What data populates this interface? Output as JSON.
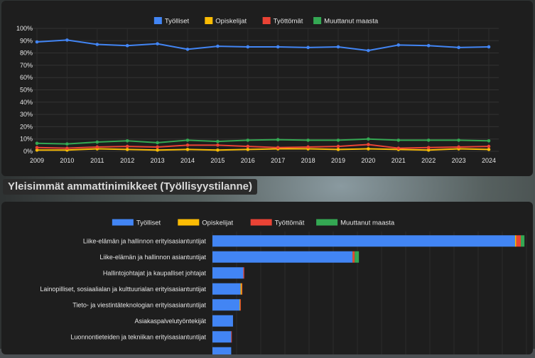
{
  "section_title": "Yleisimmät ammattinimikkeet (Työllisyystilanne)",
  "colors": {
    "tyolliset": "#4285f4",
    "opiskelijat": "#fbbc04",
    "tyottomat": "#ea4335",
    "muuttanut": "#34a853"
  },
  "chart_data": [
    {
      "type": "line",
      "legend": [
        "Työlliset",
        "Opiskelijat",
        "Työttömät",
        "Muuttanut maasta"
      ],
      "legend_position": "top",
      "x": [
        "2009",
        "2010",
        "2011",
        "2012",
        "2013",
        "2014",
        "2015",
        "2016",
        "2017",
        "2018",
        "2019",
        "2020",
        "2021",
        "2022",
        "2023",
        "2024"
      ],
      "yticks": [
        "0%",
        "10%",
        "20%",
        "30%",
        "40%",
        "50%",
        "60%",
        "70%",
        "80%",
        "90%",
        "100%"
      ],
      "ylim": [
        0,
        100
      ],
      "grid": true,
      "series": [
        {
          "name": "Työlliset",
          "values": [
            89,
            90.5,
            87,
            86,
            87.5,
            83,
            85.5,
            85,
            85,
            84.5,
            85,
            82,
            86.5,
            86,
            84.5,
            85
          ]
        },
        {
          "name": "Opiskelijat",
          "values": [
            1,
            1,
            2,
            1.5,
            1,
            1.5,
            1,
            1.5,
            2,
            2,
            1.5,
            2,
            1.5,
            1,
            2,
            1.5
          ]
        },
        {
          "name": "Työttömät",
          "values": [
            3,
            2.5,
            3.5,
            4,
            3.5,
            5,
            5,
            4,
            3,
            3.5,
            4,
            5.5,
            2.5,
            3,
            3.5,
            4
          ]
        },
        {
          "name": "Muuttanut maasta",
          "values": [
            6.5,
            6,
            7.5,
            8.5,
            7,
            9,
            8,
            9,
            9.5,
            9,
            9,
            10,
            9,
            9,
            9,
            8.5
          ]
        }
      ]
    },
    {
      "type": "bar",
      "orientation": "horizontal",
      "stacked": true,
      "legend": [
        "Työlliset",
        "Opiskelijat",
        "Työttömät",
        "Muuttanut maasta"
      ],
      "legend_position": "top",
      "categories": [
        "Liike-elämän ja hallinnon erityisasiantuntijat",
        "Liike-elämän ja hallinnon asiantuntijat",
        "Hallintojohtajat ja kaupalliset johtajat",
        "Lainopilliset, sosiaalialan ja kulttuurialan erityisasiantuntijat",
        "Tieto- ja viestintäteknologian erityisasiantuntijat",
        "Asiakaspalvelutyöntekijät",
        "Luonnontieteiden ja tekniikan erityisasiantuntijat",
        ""
      ],
      "series": [
        {
          "name": "Työlliset",
          "values": [
            1000,
            463,
            102,
            93,
            90,
            68,
            62,
            62
          ]
        },
        {
          "name": "Opiskelijat",
          "values": [
            4,
            1,
            0,
            4,
            2,
            0,
            0,
            0
          ]
        },
        {
          "name": "Työttömät",
          "values": [
            15,
            6,
            3,
            2,
            2,
            0,
            2,
            0
          ]
        },
        {
          "name": "Muuttanut maasta",
          "values": [
            12,
            14,
            0,
            0,
            0,
            0,
            0,
            0
          ]
        }
      ],
      "xlim": [
        0,
        1040
      ],
      "grid": true
    }
  ]
}
